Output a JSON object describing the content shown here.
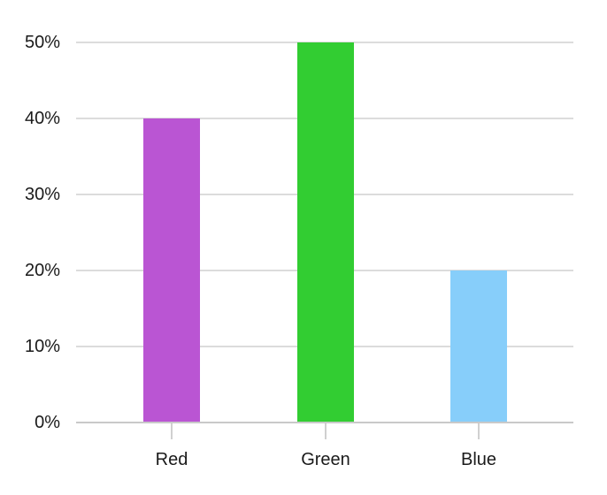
{
  "chart_data": {
    "type": "bar",
    "title": "",
    "xlabel": "",
    "ylabel": "",
    "categories": [
      "Red",
      "Green",
      "Blue"
    ],
    "values": [
      40,
      50,
      20
    ],
    "value_unit": "%",
    "bar_colors": [
      "#BA55D3",
      "#32CD32",
      "#87CEFA"
    ],
    "ylim": [
      0,
      50
    ],
    "ytick_step": 10,
    "ytick_labels": [
      "0%",
      "10%",
      "20%",
      "30%",
      "40%",
      "50%"
    ],
    "grid": true,
    "legend": false,
    "background_color": "#ffffff",
    "gridline_color": "#dcdcdc",
    "axis_line_color": "#c9c9c9",
    "tick_color": "#d0d0d0",
    "text_color": "#1a1a1a"
  }
}
